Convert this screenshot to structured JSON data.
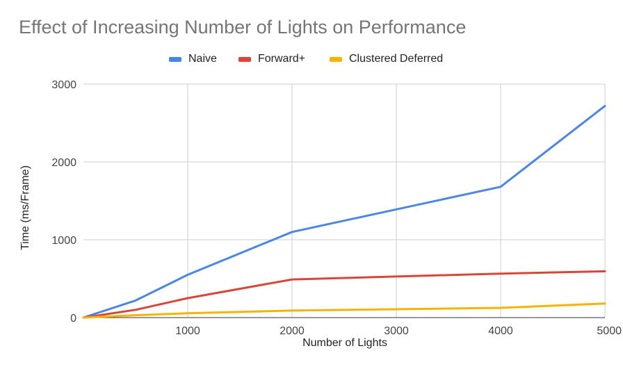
{
  "chart_data": {
    "type": "line",
    "title": "Effect of Increasing Number of Lights on Performance",
    "xlabel": "Number of Lights",
    "ylabel": "Time (ms/Frame)",
    "x": [
      0,
      500,
      1000,
      2000,
      4000,
      5000
    ],
    "xlim": [
      0,
      5000
    ],
    "ylim": [
      0,
      3000
    ],
    "x_ticks": [
      1000,
      2000,
      3000,
      4000,
      5000
    ],
    "y_ticks": [
      0,
      1000,
      2000,
      3000
    ],
    "x_tick_labels": [
      "1000",
      "2000",
      "3000",
      "4000",
      "5000"
    ],
    "y_tick_labels": [
      "0",
      "1000",
      "2000",
      "3000"
    ],
    "grid": true,
    "legend_position": "top",
    "series": [
      {
        "name": "Naive",
        "color": "#4a86e8",
        "values": [
          0,
          220,
          550,
          1100,
          1680,
          2720
        ]
      },
      {
        "name": "Forward+",
        "color": "#db4437",
        "values": [
          0,
          100,
          250,
          490,
          565,
          595
        ]
      },
      {
        "name": "Clustered Deferred",
        "color": "#f4b400",
        "values": [
          0,
          30,
          55,
          90,
          125,
          180
        ]
      }
    ]
  }
}
